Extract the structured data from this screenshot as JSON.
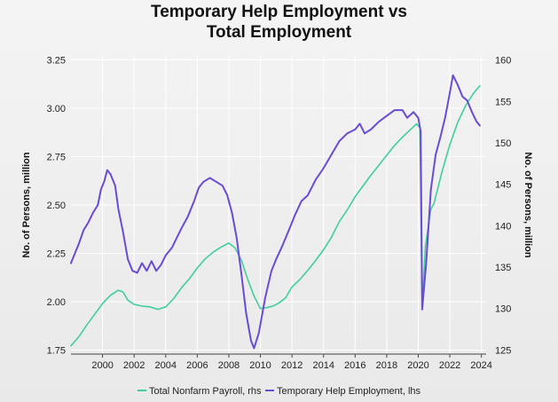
{
  "chart_data": {
    "type": "line",
    "title_line1": "Temporary Help Employment vs",
    "title_line2": "Total Employment",
    "ylabel_left": "No. of Persons, million",
    "ylabel_right": "No. of Persons, million",
    "xlim": [
      1998.0,
      2024.3
    ],
    "ylim_left": [
      1.73,
      3.27
    ],
    "ylim_right": [
      124.5,
      160.5
    ],
    "x_ticks": [
      2000,
      2002,
      2004,
      2006,
      2008,
      2010,
      2012,
      2014,
      2016,
      2018,
      2020,
      2022,
      2024
    ],
    "x_tick_labels": [
      "2000",
      "2002",
      "2004",
      "2006",
      "2008",
      "2010",
      "2012",
      "2014",
      "2016",
      "2018",
      "2020",
      "2022",
      "2024"
    ],
    "y_left_ticks": [
      1.75,
      2.0,
      2.25,
      2.5,
      2.75,
      3.0,
      3.25
    ],
    "y_left_tick_labels": [
      "1.75",
      "2.00",
      "2.25",
      "2.50",
      "2.75",
      "3.00",
      "3.25"
    ],
    "y_right_ticks": [
      125,
      130,
      135,
      140,
      145,
      150,
      155,
      160
    ],
    "y_right_tick_labels": [
      "125",
      "130",
      "135",
      "140",
      "145",
      "150",
      "155",
      "160"
    ],
    "series": [
      {
        "name": "Total Nonfarm Payroll, rhs",
        "axis": "right",
        "color": "#3fcf9a",
        "points": [
          [
            1998.0,
            125.5
          ],
          [
            1998.5,
            126.6
          ],
          [
            1999.0,
            128.0
          ],
          [
            1999.5,
            129.3
          ],
          [
            2000.0,
            130.6
          ],
          [
            2000.5,
            131.6
          ],
          [
            2001.0,
            132.2
          ],
          [
            2001.3,
            132.0
          ],
          [
            2001.6,
            131.0
          ],
          [
            2002.0,
            130.5
          ],
          [
            2002.5,
            130.3
          ],
          [
            2003.0,
            130.2
          ],
          [
            2003.5,
            129.9
          ],
          [
            2004.0,
            130.2
          ],
          [
            2004.5,
            131.2
          ],
          [
            2005.0,
            132.5
          ],
          [
            2005.5,
            133.6
          ],
          [
            2006.0,
            134.9
          ],
          [
            2006.5,
            136.0
          ],
          [
            2007.0,
            136.8
          ],
          [
            2007.5,
            137.4
          ],
          [
            2008.0,
            137.9
          ],
          [
            2008.4,
            137.3
          ],
          [
            2008.8,
            135.8
          ],
          [
            2009.2,
            133.5
          ],
          [
            2009.6,
            131.5
          ],
          [
            2010.0,
            130.0
          ],
          [
            2010.4,
            130.1
          ],
          [
            2010.8,
            130.3
          ],
          [
            2011.2,
            130.7
          ],
          [
            2011.6,
            131.3
          ],
          [
            2012.0,
            132.6
          ],
          [
            2012.5,
            133.5
          ],
          [
            2013.0,
            134.6
          ],
          [
            2013.5,
            135.8
          ],
          [
            2014.0,
            137.1
          ],
          [
            2014.5,
            138.6
          ],
          [
            2015.0,
            140.5
          ],
          [
            2015.5,
            141.9
          ],
          [
            2016.0,
            143.5
          ],
          [
            2016.5,
            144.8
          ],
          [
            2017.0,
            146.1
          ],
          [
            2017.5,
            147.3
          ],
          [
            2018.0,
            148.5
          ],
          [
            2018.5,
            149.7
          ],
          [
            2019.0,
            150.7
          ],
          [
            2019.5,
            151.6
          ],
          [
            2019.9,
            152.3
          ],
          [
            2020.1,
            151.8
          ],
          [
            2020.25,
            130.3
          ],
          [
            2020.45,
            137.5
          ],
          [
            2020.8,
            142.0
          ],
          [
            2021.0,
            142.7
          ],
          [
            2021.5,
            146.5
          ],
          [
            2022.0,
            149.8
          ],
          [
            2022.5,
            152.5
          ],
          [
            2023.0,
            154.5
          ],
          [
            2023.5,
            156.0
          ],
          [
            2023.9,
            156.9
          ]
        ]
      },
      {
        "name": "Temporary Help Employment, lhs",
        "axis": "left",
        "color": "#6a4bd4",
        "points": [
          [
            1998.0,
            2.2
          ],
          [
            1998.3,
            2.26
          ],
          [
            1998.5,
            2.3
          ],
          [
            1998.8,
            2.37
          ],
          [
            1999.1,
            2.41
          ],
          [
            1999.4,
            2.46
          ],
          [
            1999.7,
            2.5
          ],
          [
            1999.9,
            2.58
          ],
          [
            2000.1,
            2.62
          ],
          [
            2000.3,
            2.68
          ],
          [
            2000.5,
            2.66
          ],
          [
            2000.8,
            2.6
          ],
          [
            2001.0,
            2.48
          ],
          [
            2001.3,
            2.36
          ],
          [
            2001.6,
            2.22
          ],
          [
            2001.9,
            2.16
          ],
          [
            2002.2,
            2.15
          ],
          [
            2002.5,
            2.2
          ],
          [
            2002.8,
            2.16
          ],
          [
            2003.1,
            2.21
          ],
          [
            2003.4,
            2.16
          ],
          [
            2003.7,
            2.19
          ],
          [
            2004.0,
            2.24
          ],
          [
            2004.4,
            2.28
          ],
          [
            2004.7,
            2.33
          ],
          [
            2005.0,
            2.38
          ],
          [
            2005.4,
            2.44
          ],
          [
            2005.8,
            2.52
          ],
          [
            2006.1,
            2.59
          ],
          [
            2006.4,
            2.62
          ],
          [
            2006.8,
            2.64
          ],
          [
            2007.2,
            2.62
          ],
          [
            2007.6,
            2.6
          ],
          [
            2007.9,
            2.55
          ],
          [
            2008.2,
            2.46
          ],
          [
            2008.5,
            2.33
          ],
          [
            2008.8,
            2.14
          ],
          [
            2009.1,
            1.94
          ],
          [
            2009.4,
            1.8
          ],
          [
            2009.6,
            1.76
          ],
          [
            2009.9,
            1.84
          ],
          [
            2010.3,
            2.02
          ],
          [
            2010.7,
            2.16
          ],
          [
            2011.0,
            2.22
          ],
          [
            2011.4,
            2.29
          ],
          [
            2011.8,
            2.37
          ],
          [
            2012.2,
            2.45
          ],
          [
            2012.6,
            2.52
          ],
          [
            2013.0,
            2.55
          ],
          [
            2013.5,
            2.63
          ],
          [
            2014.0,
            2.69
          ],
          [
            2014.5,
            2.76
          ],
          [
            2015.0,
            2.83
          ],
          [
            2015.5,
            2.87
          ],
          [
            2016.0,
            2.89
          ],
          [
            2016.3,
            2.92
          ],
          [
            2016.6,
            2.87
          ],
          [
            2017.0,
            2.89
          ],
          [
            2017.5,
            2.93
          ],
          [
            2018.0,
            2.96
          ],
          [
            2018.5,
            2.99
          ],
          [
            2019.0,
            2.99
          ],
          [
            2019.3,
            2.95
          ],
          [
            2019.7,
            2.98
          ],
          [
            2020.0,
            2.95
          ],
          [
            2020.15,
            2.88
          ],
          [
            2020.25,
            1.96
          ],
          [
            2020.5,
            2.2
          ],
          [
            2020.8,
            2.58
          ],
          [
            2021.1,
            2.76
          ],
          [
            2021.4,
            2.85
          ],
          [
            2021.7,
            2.95
          ],
          [
            2022.0,
            3.08
          ],
          [
            2022.2,
            3.17
          ],
          [
            2022.5,
            3.12
          ],
          [
            2022.8,
            3.06
          ],
          [
            2023.1,
            3.04
          ],
          [
            2023.4,
            2.98
          ],
          [
            2023.7,
            2.93
          ],
          [
            2023.9,
            2.91
          ]
        ]
      }
    ],
    "legend": [
      {
        "label": "Total Nonfarm Payroll, rhs",
        "color": "#3fcf9a"
      },
      {
        "label": "Temporary Help Employment, lhs",
        "color": "#6a4bd4"
      }
    ]
  }
}
